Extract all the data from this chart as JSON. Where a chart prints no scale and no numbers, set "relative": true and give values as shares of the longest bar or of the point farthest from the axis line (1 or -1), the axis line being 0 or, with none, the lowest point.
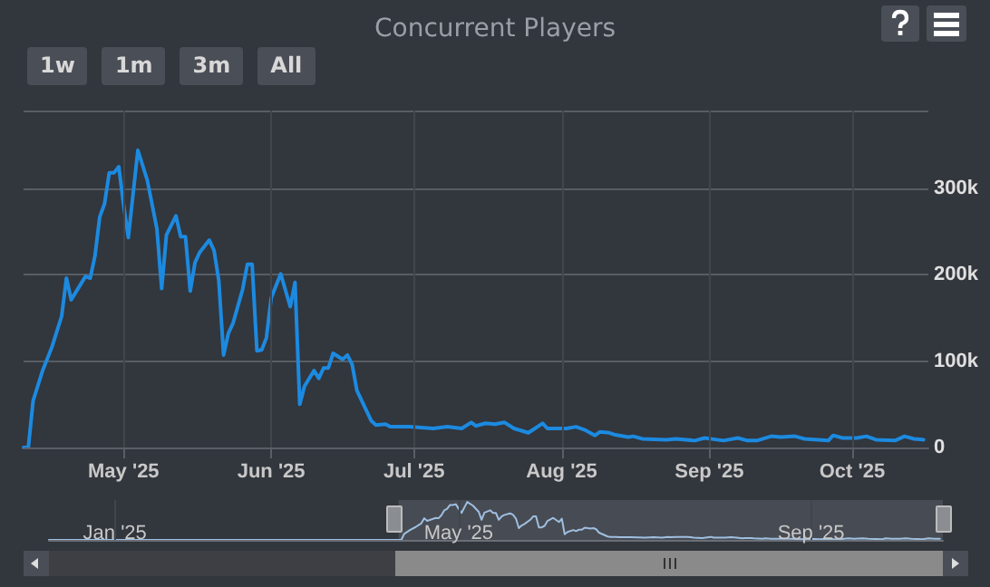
{
  "chart_data": [
    {
      "type": "line",
      "title": "Concurrent Players",
      "annotations": [
        "1w",
        "1m",
        "3m",
        "All"
      ],
      "x": [
        "2025-04-10",
        "2025-04-11",
        "2025-04-12",
        "2025-04-14",
        "2025-04-16",
        "2025-04-18",
        "2025-04-19",
        "2025-04-20",
        "2025-04-23",
        "2025-04-24",
        "2025-04-25",
        "2025-04-26",
        "2025-04-27",
        "2025-04-28",
        "2025-04-29",
        "2025-04-30",
        "2025-05-01",
        "2025-05-02",
        "2025-05-04",
        "2025-05-06",
        "2025-05-08",
        "2025-05-09",
        "2025-05-10",
        "2025-05-12",
        "2025-05-13",
        "2025-05-14",
        "2025-05-15",
        "2025-05-16",
        "2025-05-17",
        "2025-05-19",
        "2025-05-20",
        "2025-05-21",
        "2025-05-22",
        "2025-05-23",
        "2025-05-24",
        "2025-05-26",
        "2025-05-27",
        "2025-05-28",
        "2025-05-29",
        "2025-05-30",
        "2025-05-31",
        "2025-06-01",
        "2025-06-03",
        "2025-06-05",
        "2025-06-06",
        "2025-06-07",
        "2025-06-08",
        "2025-06-10",
        "2025-06-11",
        "2025-06-12",
        "2025-06-13",
        "2025-06-14",
        "2025-06-16",
        "2025-06-17",
        "2025-06-18",
        "2025-06-19",
        "2025-06-22",
        "2025-06-23",
        "2025-06-25",
        "2025-06-26",
        "2025-06-30",
        "2025-07-05",
        "2025-07-08",
        "2025-07-11",
        "2025-07-13",
        "2025-07-14",
        "2025-07-16",
        "2025-07-18",
        "2025-07-20",
        "2025-07-22",
        "2025-07-25",
        "2025-07-28",
        "2025-07-29",
        "2025-08-02",
        "2025-08-04",
        "2025-08-06",
        "2025-08-08",
        "2025-08-09",
        "2025-08-11",
        "2025-08-12",
        "2025-08-15",
        "2025-08-16",
        "2025-08-18",
        "2025-08-23",
        "2025-08-25",
        "2025-08-29",
        "2025-08-31",
        "2025-09-04",
        "2025-09-07",
        "2025-09-09",
        "2025-09-11",
        "2025-09-14",
        "2025-09-16",
        "2025-09-19",
        "2025-09-21",
        "2025-09-26",
        "2025-09-27",
        "2025-09-29",
        "2025-10-02",
        "2025-10-04",
        "2025-10-06",
        "2025-10-10",
        "2025-10-12",
        "2025-10-14",
        "2025-10-16"
      ],
      "series": [
        {
          "color": "#1c8ae0",
          "values": [
            0,
            0,
            54000,
            89000,
            117000,
            152000,
            196000,
            171000,
            198000,
            196000,
            222000,
            267000,
            282000,
            318000,
            318000,
            325000,
            281000,
            243000,
            344000,
            309000,
            253000,
            184000,
            246000,
            268000,
            244000,
            244000,
            181000,
            214000,
            226000,
            240000,
            228000,
            193000,
            107000,
            132000,
            144000,
            183000,
            212000,
            212000,
            112000,
            113000,
            127000,
            173000,
            201000,
            163000,
            191000,
            50000,
            71000,
            89000,
            80000,
            92000,
            92000,
            109000,
            102000,
            107000,
            96000,
            66000,
            31000,
            26000,
            27000,
            24000,
            24000,
            22000,
            24000,
            22000,
            29000,
            25000,
            28000,
            27000,
            29000,
            22000,
            17000,
            28000,
            22000,
            22000,
            24000,
            20000,
            14000,
            18000,
            17000,
            15000,
            12000,
            13000,
            10000,
            9000,
            10000,
            8000,
            11000,
            8000,
            11000,
            8000,
            8000,
            13000,
            12000,
            13000,
            10000,
            8000,
            14000,
            11000,
            11000,
            13000,
            9000,
            8000,
            13000,
            10000,
            9000
          ]
        }
      ],
      "xlim": [
        "2025-04-10",
        "2025-10-17"
      ],
      "xticks": [
        {
          "value": "2025-05-01",
          "label": "May '25"
        },
        {
          "value": "2025-06-01",
          "label": "Jun '25"
        },
        {
          "value": "2025-07-01",
          "label": "Jul '25"
        },
        {
          "value": "2025-08-01",
          "label": "Aug '25"
        },
        {
          "value": "2025-09-01",
          "label": "Sep '25"
        },
        {
          "value": "2025-10-01",
          "label": "Oct '25"
        }
      ],
      "ylim": [
        0,
        390000
      ],
      "yticks": [
        0,
        {
          "value": 100000,
          "label": "100k"
        },
        {
          "value": 200000,
          "label": "200k"
        },
        {
          "value": 300000,
          "label": "300k"
        }
      ],
      "grid": true
    },
    {
      "type": "line",
      "relative": true,
      "grid": "x",
      "x": [
        "2024-12-09",
        "2025-04-10",
        "2025-04-11",
        "2025-04-12",
        "2025-04-14",
        "2025-04-16",
        "2025-04-18",
        "2025-04-19",
        "2025-04-20",
        "2025-04-23",
        "2025-04-24",
        "2025-04-25",
        "2025-04-26",
        "2025-04-27",
        "2025-04-28",
        "2025-04-29",
        "2025-04-30",
        "2025-05-01",
        "2025-05-02",
        "2025-05-04",
        "2025-05-06",
        "2025-05-08",
        "2025-05-09",
        "2025-05-10",
        "2025-05-12",
        "2025-05-13",
        "2025-05-14",
        "2025-05-15",
        "2025-05-16",
        "2025-05-17",
        "2025-05-19",
        "2025-05-20",
        "2025-05-21",
        "2025-05-22",
        "2025-05-23",
        "2025-05-24",
        "2025-05-26",
        "2025-05-27",
        "2025-05-28",
        "2025-05-29",
        "2025-05-30",
        "2025-05-31",
        "2025-06-01",
        "2025-06-03",
        "2025-06-05",
        "2025-06-06",
        "2025-06-07",
        "2025-06-08",
        "2025-06-10",
        "2025-06-11",
        "2025-06-12",
        "2025-06-13",
        "2025-06-14",
        "2025-06-16",
        "2025-06-17",
        "2025-06-18",
        "2025-06-19",
        "2025-06-22",
        "2025-06-23",
        "2025-06-25",
        "2025-06-26",
        "2025-06-30",
        "2025-07-05",
        "2025-07-08",
        "2025-07-11",
        "2025-07-13",
        "2025-07-14",
        "2025-07-16",
        "2025-07-18",
        "2025-07-20",
        "2025-07-22",
        "2025-07-25",
        "2025-07-28",
        "2025-07-29",
        "2025-08-02",
        "2025-08-04",
        "2025-08-06",
        "2025-08-08",
        "2025-08-09",
        "2025-08-11",
        "2025-08-12",
        "2025-08-15",
        "2025-08-16",
        "2025-08-18",
        "2025-08-23",
        "2025-08-25",
        "2025-08-29",
        "2025-08-31",
        "2025-09-04",
        "2025-09-07",
        "2025-09-09",
        "2025-09-11",
        "2025-09-14",
        "2025-09-16",
        "2025-09-19",
        "2025-09-21",
        "2025-09-26",
        "2025-09-27",
        "2025-09-29",
        "2025-10-02",
        "2025-10-04",
        "2025-10-06",
        "2025-10-10",
        "2025-10-12",
        "2025-10-14",
        "2025-10-16"
      ],
      "series": [
        {
          "color": "#9fbfe0",
          "values": [
            0,
            0,
            0,
            0.16,
            0.26,
            0.34,
            0.44,
            0.57,
            0.5,
            0.58,
            0.57,
            0.65,
            0.78,
            0.82,
            0.92,
            0.92,
            0.94,
            0.82,
            0.71,
            1,
            0.9,
            0.74,
            0.53,
            0.72,
            0.78,
            0.71,
            0.71,
            0.53,
            0.62,
            0.66,
            0.7,
            0.66,
            0.56,
            0.31,
            0.38,
            0.42,
            0.53,
            0.62,
            0.62,
            0.33,
            0.33,
            0.37,
            0.5,
            0.58,
            0.47,
            0.56,
            0.15,
            0.21,
            0.26,
            0.23,
            0.27,
            0.27,
            0.32,
            0.3,
            0.31,
            0.28,
            0.19,
            0.09,
            0.08,
            0.08,
            0.07,
            0.07,
            0.06,
            0.07,
            0.06,
            0.08,
            0.07,
            0.08,
            0.08,
            0.08,
            0.06,
            0.05,
            0.08,
            0.06,
            0.06,
            0.07,
            0.06,
            0.04,
            0.05,
            0.05,
            0.04,
            0.03,
            0.04,
            0.03,
            0.03,
            0.03,
            0.02,
            0.03,
            0.02,
            0.03,
            0.02,
            0.02,
            0.04,
            0.03,
            0.04,
            0.03,
            0.02,
            0.04,
            0.03,
            0.03,
            0.04,
            0.03,
            0.02,
            0.04,
            0.03,
            0.03
          ]
        }
      ],
      "xlim": [
        "2024-12-09",
        "2025-10-17"
      ],
      "xticks": [
        {
          "value": "2025-01-01",
          "label": "Jan '25"
        },
        {
          "value": "2025-05-01",
          "label": "May '25"
        },
        {
          "value": "2025-09-01",
          "label": "Sep '25"
        }
      ],
      "bands": [
        {
          "axis": "x",
          "from": "2025-04-10",
          "to": "2025-10-17",
          "color": "#474b53"
        }
      ]
    }
  ]
}
